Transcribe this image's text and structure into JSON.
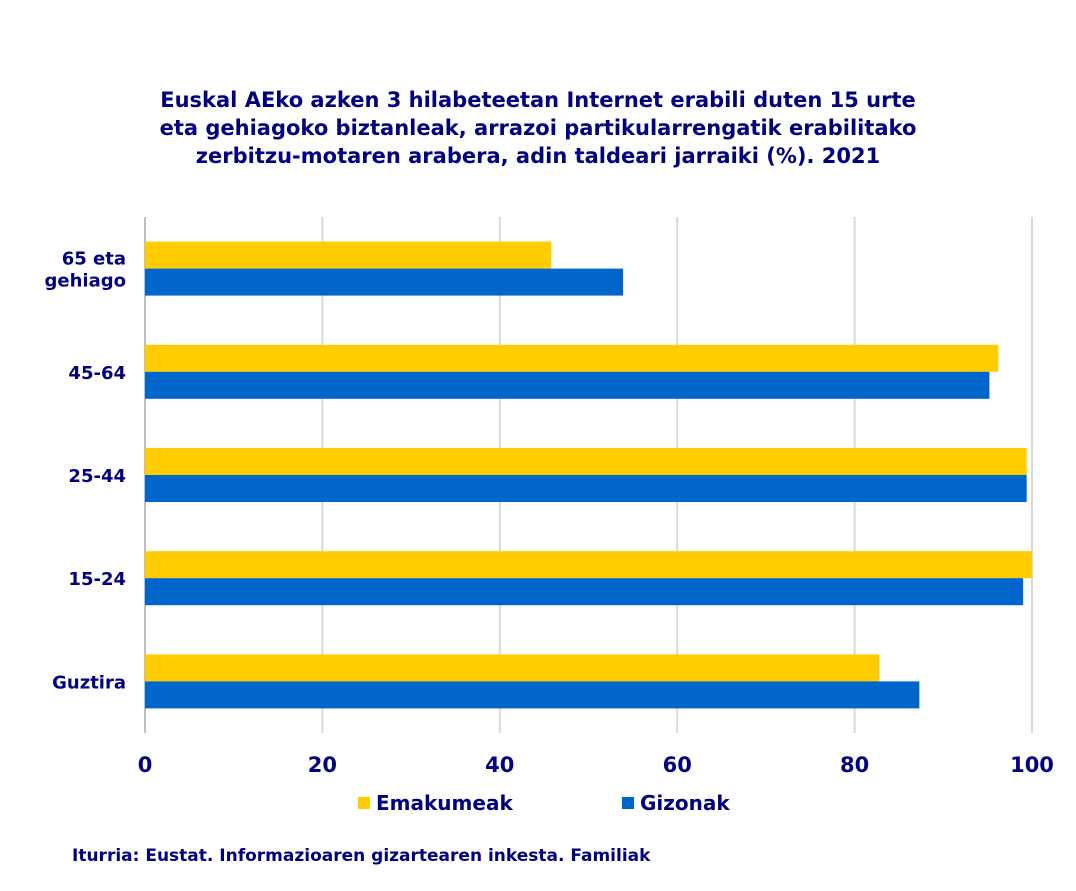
{
  "chart_data": {
    "type": "bar",
    "orientation": "horizontal",
    "title_lines": [
      "Euskal AEko azken 3 hilabeteetan Internet erabili duten 15 urte",
      "eta gehiagoko biztanleak, arrazoi partikularrengatik erabilitako",
      "zerbitzu-motaren arabera, adin taldeari jarraiki (%). 2021"
    ],
    "categories": [
      [
        "65 eta",
        "gehiago"
      ],
      [
        "45-64"
      ],
      [
        "25-44"
      ],
      [
        "15-24"
      ],
      [
        "Guztira"
      ]
    ],
    "series": [
      {
        "name": "Emakumeak",
        "color": "#FFCC00",
        "values": [
          45.8,
          96.2,
          99.4,
          100.0,
          82.8
        ]
      },
      {
        "name": "Gizonak",
        "color": "#0066CC",
        "values": [
          53.9,
          95.2,
          99.4,
          99.0,
          87.3
        ]
      }
    ],
    "xlim": [
      0,
      100
    ],
    "xticks": [
      0,
      20,
      40,
      60,
      80,
      100
    ],
    "grid": true,
    "legend": "bottom-center",
    "xlabel": "",
    "ylabel": ""
  },
  "source": "Iturria: Eustat. Informazioaren gizartearen inkesta. Familiak"
}
